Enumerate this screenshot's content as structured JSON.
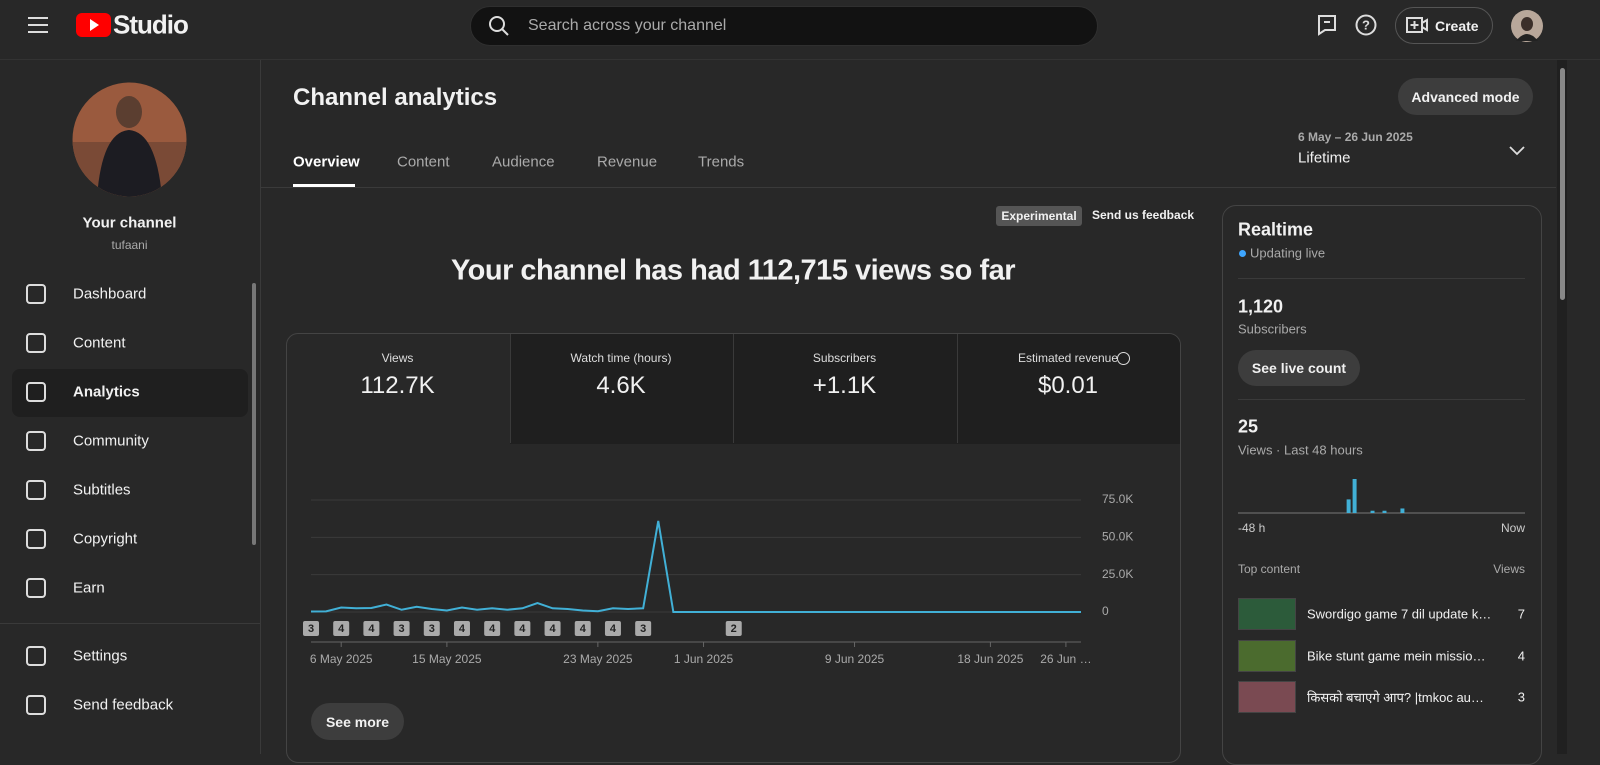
{
  "header": {
    "logo": "Studio",
    "search_placeholder": "Search across your channel",
    "create": "Create"
  },
  "sidebar": {
    "channel_title": "Your channel",
    "channel_handle": "tufaani",
    "nav": [
      "Dashboard",
      "Content",
      "Analytics",
      "Community",
      "Subtitles",
      "Copyright",
      "Earn"
    ],
    "footer_nav": [
      "Settings",
      "Send feedback"
    ]
  },
  "page": {
    "title": "Channel analytics",
    "advanced_mode": "Advanced mode",
    "tabs": [
      "Overview",
      "Content",
      "Audience",
      "Revenue",
      "Trends"
    ],
    "date_range": "6 May – 26 Jun 2025",
    "period": "Lifetime",
    "experimental": "Experimental",
    "feedback": "Send us feedback",
    "headline": "Your channel has had 112,715 views so far",
    "metrics": [
      {
        "label": "Views",
        "value": "112.7K"
      },
      {
        "label": "Watch time (hours)",
        "value": "4.6K"
      },
      {
        "label": "Subscribers",
        "value": "+1.1K"
      },
      {
        "label": "Estimated revenue",
        "value": "$0.01"
      }
    ],
    "see_more": "See more"
  },
  "analytics_chart": {
    "type": "line",
    "color": "#41b0d6",
    "values": [
      300,
      400,
      3000,
      2500,
      2700,
      5000,
      1500,
      3500,
      2000,
      1000,
      3000,
      1500,
      2500,
      1500,
      2500,
      6000,
      2500,
      2000,
      1000,
      500,
      2500,
      2000,
      2500,
      61000,
      0,
      0,
      0,
      0,
      0,
      0,
      0,
      0,
      0,
      0,
      0,
      0,
      0,
      0,
      0,
      0,
      0,
      0,
      0,
      0,
      0,
      0,
      0,
      0,
      0,
      0,
      0,
      0
    ],
    "xlim": [
      0,
      51
    ],
    "xticks": [
      {
        "value": 2,
        "label": "6 May 2025"
      },
      {
        "value": 9,
        "label": "15 May 2025"
      },
      {
        "value": 19,
        "label": "23 May 2025"
      },
      {
        "value": 26,
        "label": "1 Jun 2025"
      },
      {
        "value": 36,
        "label": "9 Jun 2025"
      },
      {
        "value": 45,
        "label": "18 Jun 2025"
      },
      {
        "value": 50,
        "label": "26 Jun …"
      }
    ],
    "ylim": [
      0,
      75000
    ],
    "yticks": [
      0,
      {
        "value": 25000,
        "label": "25.0K"
      },
      {
        "value": 50000,
        "label": "50.0K"
      },
      {
        "value": 75000,
        "label": "75.0K"
      }
    ],
    "grid": true,
    "annotations": [
      {
        "x": 0,
        "label": 3
      },
      {
        "x": 2,
        "label": 4
      },
      {
        "x": 4,
        "label": 4
      },
      {
        "x": 6,
        "label": 3
      },
      {
        "x": 8,
        "label": 3
      },
      {
        "x": 10,
        "label": 4
      },
      {
        "x": 12,
        "label": 4
      },
      {
        "x": 14,
        "label": 4
      },
      {
        "x": 16,
        "label": 4
      },
      {
        "x": 18,
        "label": 4
      },
      {
        "x": 20,
        "label": 4
      },
      {
        "x": 22,
        "label": 3
      },
      {
        "x": 28,
        "label": 2
      }
    ]
  },
  "realtime": {
    "title": "Realtime",
    "status": "Updating live",
    "subscribers": "1,120",
    "subscribers_label": "Subscribers",
    "see_live_count": "See live count",
    "views": 25,
    "views_label": "Views · Last 48 hours",
    "views_chart": {
      "type": "bar",
      "color": "#41b0d6",
      "values": [
        0,
        0,
        0,
        0,
        0,
        0,
        0,
        0,
        0,
        0,
        0,
        0,
        0,
        0,
        0,
        0,
        0,
        0,
        6,
        15,
        0,
        0,
        1,
        0,
        1,
        0,
        0,
        2,
        0,
        0,
        0,
        0,
        0,
        0,
        0,
        0,
        0,
        0,
        0,
        0,
        0,
        0,
        0,
        0,
        0,
        0,
        0,
        0
      ],
      "start_label": "-48 h",
      "end_label": "Now"
    },
    "top_content_label": "Top content",
    "views_column": "Views",
    "top_content": [
      {
        "title": "Swordigo game 7 dil update k…",
        "views": 7
      },
      {
        "title": "Bike stunt game mein missio…",
        "views": 4
      },
      {
        "title": "किसको बचाएगे आप? |tmkoc au…",
        "views": 3
      }
    ]
  }
}
